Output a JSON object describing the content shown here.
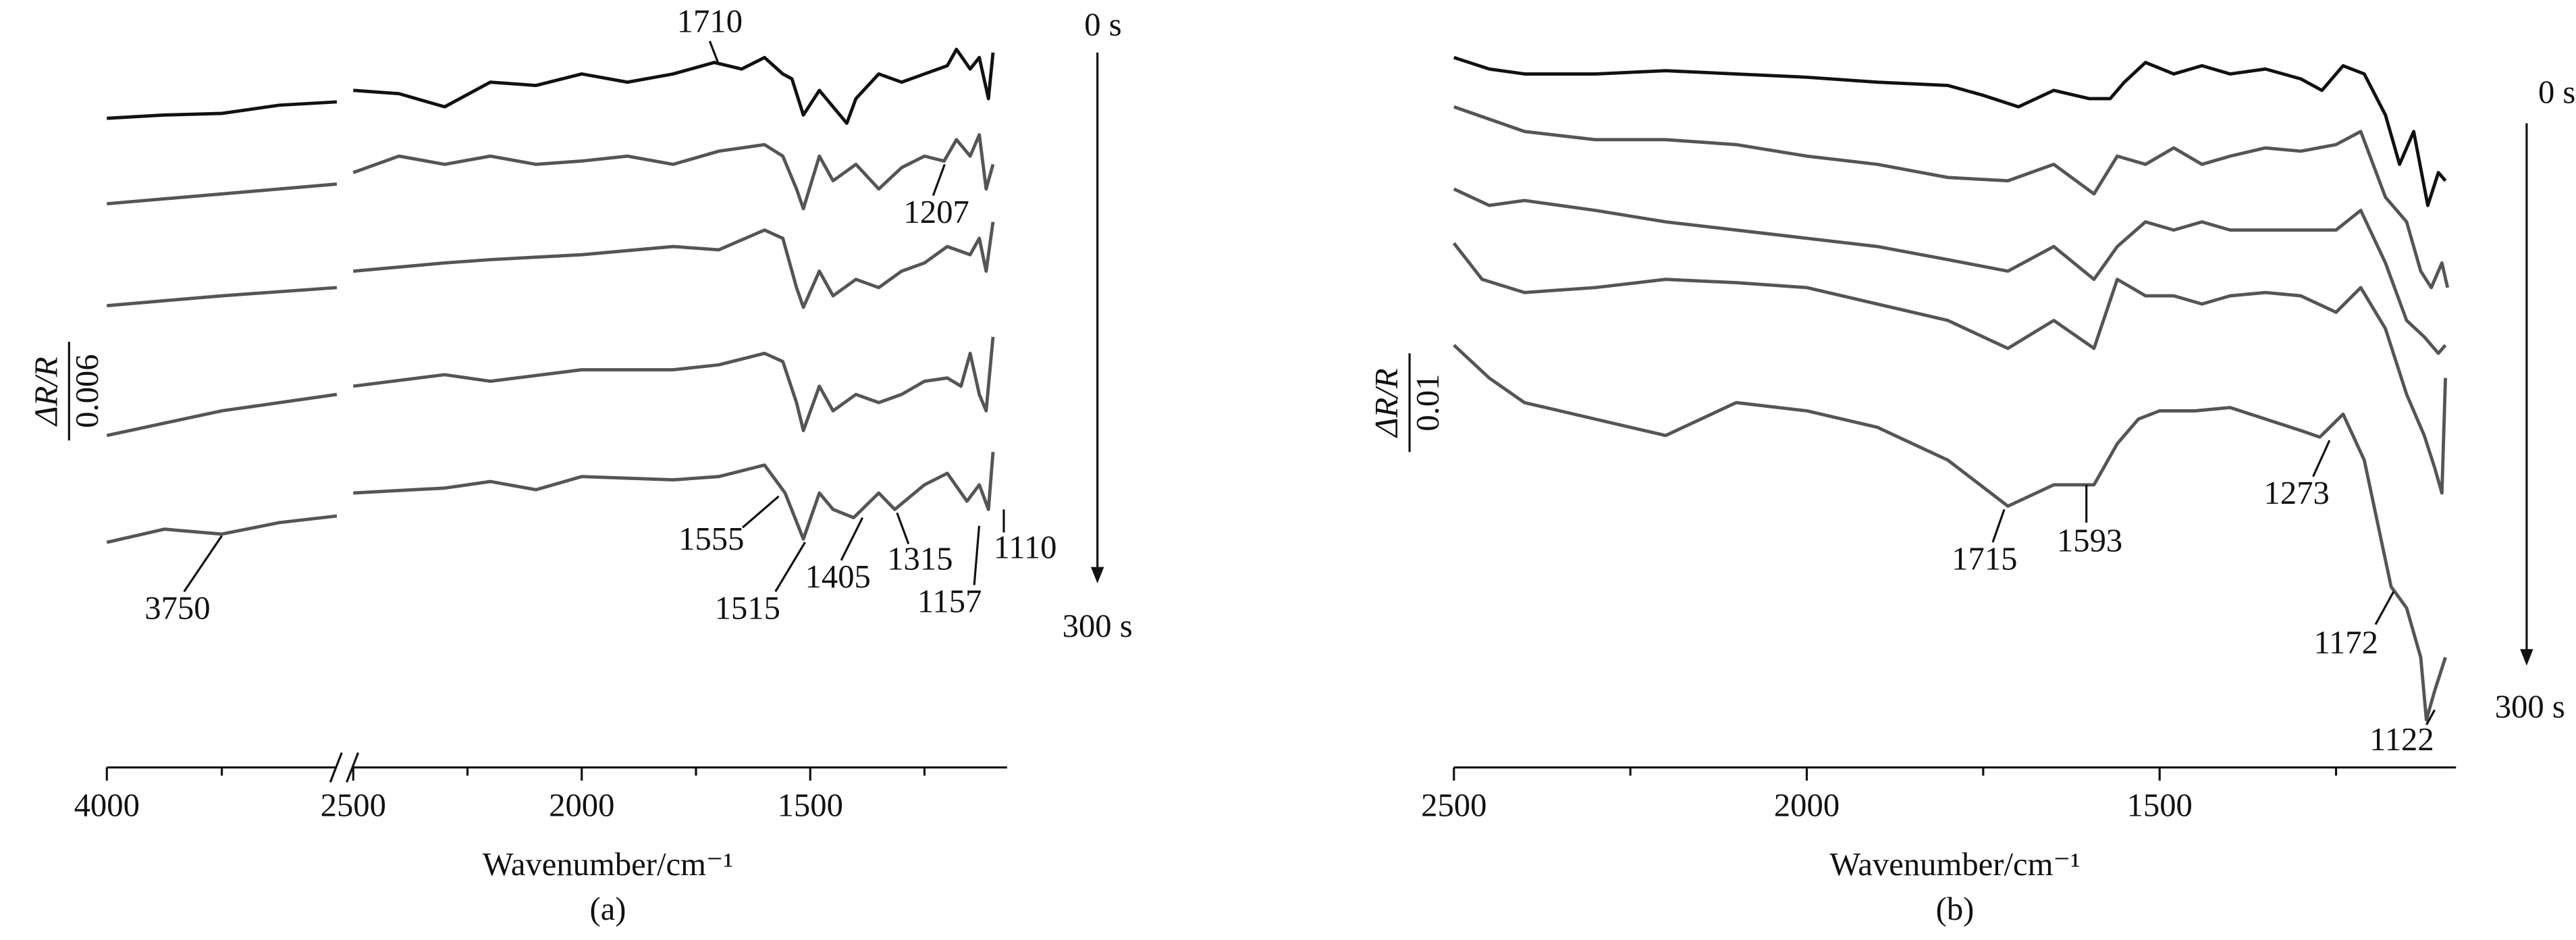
{
  "chart_data": [
    {
      "type": "line",
      "xlabel": "Wavenumber/cm⁻¹",
      "caption": "(a)",
      "ylabel": "ΔR/R",
      "scale_bar": 0.006,
      "time_start": "0 s",
      "time_end": "300 s",
      "xlim": [
        4000,
        1080
      ],
      "xbreak": [
        3500,
        2500
      ],
      "ylim": [
        0,
        46
      ],
      "xticks": [
        4000,
        2500,
        2000,
        1500
      ],
      "xminor": [
        3750,
        2250,
        1750,
        1250
      ],
      "annotations": [
        1710,
        1207,
        1555,
        1515,
        1405,
        1315,
        1157,
        1110,
        3750
      ],
      "series": [
        {
          "color": "#111111",
          "x": [
            4000,
            3875,
            3750,
            3625,
            3500,
            3000,
            2500,
            2400,
            2300,
            2200,
            2100,
            2000,
            1900,
            1800,
            1710,
            1650,
            1600,
            1560,
            1540,
            1515,
            1480,
            1450,
            1420,
            1400,
            1350,
            1300,
            1250,
            1200,
            1180,
            1150,
            1130,
            1110,
            1100
          ],
          "values": [
            38.8,
            39,
            39.1,
            39.6,
            39.8,
            null,
            40.5,
            40.3,
            39.5,
            41,
            40.8,
            41.5,
            41,
            41.5,
            42.2,
            41.8,
            42.5,
            41.5,
            41.2,
            39,
            40.5,
            39.5,
            38.5,
            40,
            41.5,
            41,
            41.5,
            42,
            43,
            41.8,
            42.5,
            40,
            42.8
          ]
        },
        {
          "color": "#555555",
          "x": [
            4000,
            3750,
            3500,
            3000,
            2500,
            2400,
            2300,
            2200,
            2100,
            2000,
            1900,
            1800,
            1700,
            1600,
            1560,
            1530,
            1515,
            1480,
            1450,
            1400,
            1350,
            1300,
            1250,
            1207,
            1180,
            1150,
            1130,
            1115,
            1100
          ],
          "values": [
            33.6,
            34.2,
            34.8,
            null,
            35.5,
            36.5,
            36,
            36.5,
            36,
            36.2,
            36.5,
            36,
            36.8,
            37.2,
            36.5,
            34.5,
            33.3,
            36.5,
            35,
            36,
            34.5,
            35.8,
            36.5,
            36.2,
            37.5,
            36.5,
            37.8,
            34.5,
            36
          ]
        },
        {
          "color": "#555555",
          "x": [
            4000,
            3750,
            3500,
            3000,
            2500,
            2300,
            2200,
            2000,
            1800,
            1700,
            1600,
            1560,
            1530,
            1515,
            1480,
            1450,
            1400,
            1350,
            1300,
            1250,
            1200,
            1150,
            1130,
            1115,
            1100
          ],
          "values": [
            27.4,
            28,
            28.5,
            null,
            29.5,
            30,
            30.2,
            30.5,
            31,
            30.8,
            32,
            31.5,
            28.5,
            27.3,
            29.5,
            28,
            29,
            28.5,
            29.5,
            30,
            31,
            30.5,
            31.5,
            29.5,
            32.5
          ]
        },
        {
          "color": "#555555",
          "x": [
            4000,
            3750,
            3500,
            3000,
            2500,
            2300,
            2200,
            2000,
            1800,
            1700,
            1600,
            1560,
            1530,
            1515,
            1480,
            1450,
            1400,
            1350,
            1300,
            1250,
            1200,
            1170,
            1150,
            1130,
            1115,
            1100
          ],
          "values": [
            19.5,
            21,
            22,
            null,
            22.5,
            23.2,
            22.8,
            23.5,
            23.5,
            23.8,
            24.5,
            24,
            21.5,
            19.8,
            22.5,
            21,
            22,
            21.5,
            22,
            22.8,
            23,
            22.5,
            24.5,
            22,
            21,
            25.5
          ]
        },
        {
          "color": "#555555",
          "x": [
            4000,
            3875,
            3750,
            3625,
            3500,
            3000,
            2500,
            2300,
            2200,
            2100,
            2000,
            1800,
            1700,
            1600,
            1555,
            1515,
            1480,
            1450,
            1405,
            1350,
            1315,
            1250,
            1200,
            1157,
            1130,
            1110,
            1100
          ],
          "values": [
            13,
            13.8,
            13.5,
            14.2,
            14.6,
            null,
            16,
            16.3,
            16.7,
            16.2,
            17,
            16.8,
            17,
            17.7,
            16,
            13.2,
            16,
            15,
            14.5,
            16,
            15,
            16.5,
            17.2,
            15.5,
            16.5,
            15,
            18.5
          ]
        }
      ]
    },
    {
      "type": "line",
      "xlabel": "Wavenumber/cm⁻¹",
      "caption": "(b)",
      "ylabel": "ΔR/R",
      "scale_bar": 0.01,
      "time_start": "0 s",
      "time_end": "300 s",
      "xlim": [
        2500,
        1080
      ],
      "ylim": [
        0,
        46
      ],
      "xticks": [
        2500,
        2000,
        1500
      ],
      "xminor": [
        2250,
        1750,
        1250
      ],
      "annotations": [
        1715,
        1593,
        1273,
        1172,
        1122
      ],
      "series": [
        {
          "color": "#111111",
          "x": [
            2500,
            2450,
            2400,
            2300,
            2200,
            2100,
            2000,
            1900,
            1800,
            1750,
            1700,
            1650,
            1600,
            1570,
            1550,
            1520,
            1480,
            1440,
            1400,
            1350,
            1300,
            1270,
            1240,
            1210,
            1180,
            1160,
            1140,
            1120,
            1105,
            1095
          ],
          "values": [
            42.5,
            41.8,
            41.5,
            41.5,
            41.7,
            41.5,
            41.3,
            41,
            40.8,
            40.2,
            39.5,
            40.5,
            40,
            40,
            41,
            42.2,
            41.5,
            42,
            41.5,
            41.8,
            41.2,
            40.5,
            42,
            41.5,
            39,
            36,
            38,
            33.5,
            35.5,
            35
          ]
        },
        {
          "color": "#555555",
          "x": [
            2500,
            2400,
            2300,
            2200,
            2100,
            2000,
            1900,
            1800,
            1715,
            1650,
            1593,
            1560,
            1520,
            1480,
            1440,
            1400,
            1350,
            1300,
            1250,
            1215,
            1180,
            1150,
            1130,
            1115,
            1100,
            1092
          ],
          "values": [
            39.5,
            38,
            37.5,
            37.5,
            37.2,
            36.5,
            36,
            35.2,
            35,
            36,
            34.2,
            36.5,
            36,
            37,
            36,
            36.5,
            37,
            36.8,
            37.2,
            38,
            34,
            32.5,
            29.5,
            28.5,
            30,
            28.5
          ]
        },
        {
          "color": "#555555",
          "x": [
            2500,
            2450,
            2400,
            2300,
            2200,
            2100,
            2000,
            1900,
            1800,
            1715,
            1650,
            1593,
            1560,
            1520,
            1480,
            1440,
            1400,
            1350,
            1300,
            1250,
            1215,
            1180,
            1150,
            1125,
            1105,
            1095
          ],
          "values": [
            34.5,
            33.5,
            33.8,
            33.2,
            32.5,
            32,
            31.5,
            31,
            30.2,
            29.5,
            31,
            29,
            31,
            32.5,
            32,
            32.5,
            32,
            32,
            32,
            32,
            33.2,
            30,
            26.5,
            25.5,
            24.5,
            25
          ]
        },
        {
          "color": "#555555",
          "x": [
            2500,
            2460,
            2400,
            2300,
            2200,
            2100,
            2000,
            1900,
            1800,
            1715,
            1650,
            1593,
            1560,
            1520,
            1480,
            1440,
            1400,
            1350,
            1300,
            1250,
            1215,
            1180,
            1150,
            1125,
            1110,
            1100,
            1095
          ],
          "values": [
            31.2,
            29,
            28.2,
            28.5,
            29,
            28.8,
            28.5,
            27.5,
            26.5,
            24.8,
            26.5,
            24.8,
            29,
            28,
            28,
            27.5,
            28,
            28.2,
            28,
            27,
            28.5,
            26,
            22,
            19.5,
            17.5,
            16,
            23
          ]
        },
        {
          "color": "#555555",
          "x": [
            2500,
            2450,
            2400,
            2300,
            2200,
            2100,
            2000,
            1900,
            1800,
            1715,
            1650,
            1593,
            1560,
            1530,
            1500,
            1450,
            1400,
            1350,
            1300,
            1273,
            1240,
            1210,
            1172,
            1150,
            1130,
            1122,
            1110,
            1095
          ],
          "values": [
            25,
            23,
            21.5,
            20.5,
            19.5,
            21.5,
            21,
            20,
            18,
            15.2,
            16.5,
            16.5,
            19,
            20.5,
            21,
            21,
            21.2,
            20.5,
            19.8,
            19.4,
            20.8,
            18,
            10.3,
            9,
            6,
            2.2,
            4,
            6
          ]
        }
      ]
    }
  ]
}
